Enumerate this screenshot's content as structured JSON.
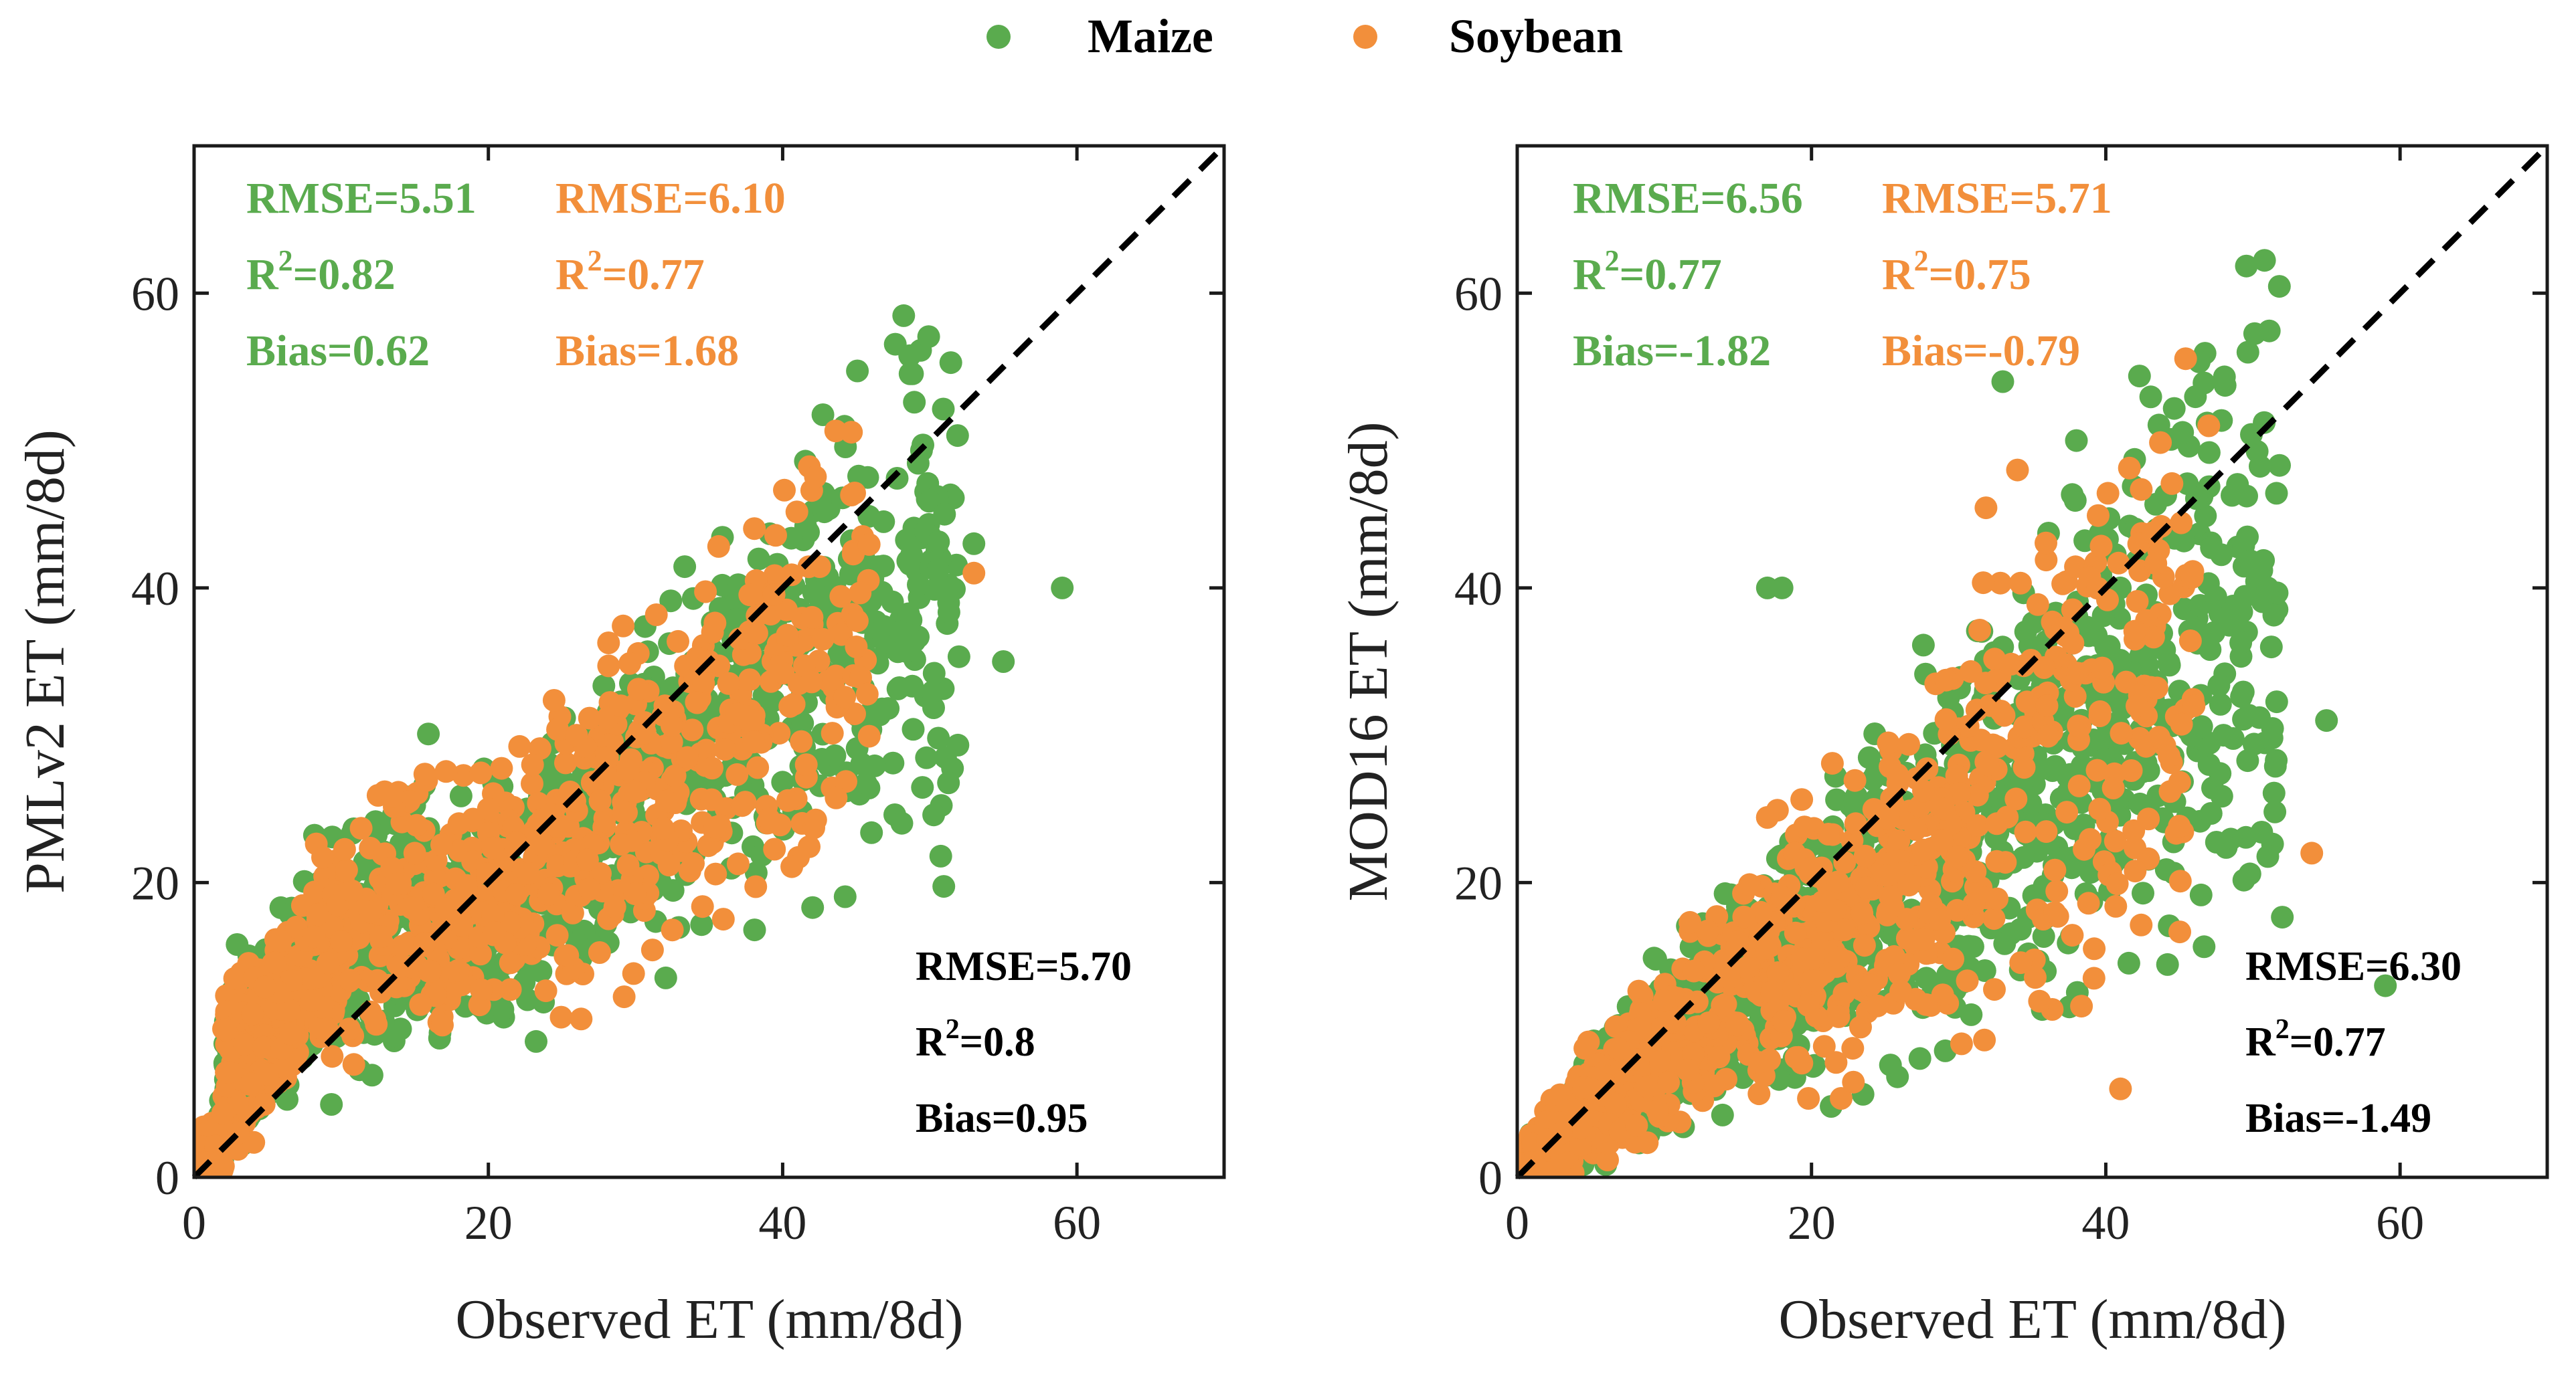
{
  "colors": {
    "maize": "#5aab4e",
    "soybean": "#f28f3b",
    "axis": "#1a1a1a",
    "combined": "#000000"
  },
  "legend": {
    "entries": [
      {
        "label": "Maize",
        "color": "#5aab4e"
      },
      {
        "label": "Soybean",
        "color": "#f28f3b"
      }
    ]
  },
  "chart_data": [
    {
      "type": "scatter",
      "title": "",
      "xlabel": "Observed ET (mm/8d)",
      "ylabel": "PMLv2 ET (mm/8d)",
      "xlim": [
        0,
        70
      ],
      "ylim": [
        0,
        70
      ],
      "xticks": [
        0,
        20,
        40,
        60
      ],
      "yticks": [
        0,
        20,
        40,
        60
      ],
      "reference_line": "1:1 dashed",
      "series": [
        {
          "name": "Maize",
          "color": "#5aab4e",
          "n_points_approx": 1400,
          "approx_points": [
            [
              1,
              1
            ],
            [
              3,
              2
            ],
            [
              5,
              6
            ],
            [
              8,
              9
            ],
            [
              10,
              14
            ],
            [
              12,
              11
            ],
            [
              15,
              18
            ],
            [
              18,
              22
            ],
            [
              20,
              20
            ],
            [
              22,
              24
            ],
            [
              25,
              27
            ],
            [
              28,
              26
            ],
            [
              30,
              30
            ],
            [
              33,
              33
            ],
            [
              35,
              34
            ],
            [
              38,
              37
            ],
            [
              40,
              39
            ],
            [
              42,
              38
            ],
            [
              45,
              38
            ],
            [
              48,
              37
            ],
            [
              51,
              45
            ],
            [
              53,
              43
            ],
            [
              55,
              35
            ],
            [
              59,
              40
            ]
          ]
        },
        {
          "name": "Soybean",
          "color": "#f28f3b",
          "n_points_approx": 900,
          "approx_points": [
            [
              1,
              1
            ],
            [
              3,
              3
            ],
            [
              5,
              7
            ],
            [
              8,
              12
            ],
            [
              10,
              16
            ],
            [
              12,
              18
            ],
            [
              15,
              22
            ],
            [
              18,
              24
            ],
            [
              20,
              25
            ],
            [
              23,
              28
            ],
            [
              26,
              30
            ],
            [
              29,
              32
            ],
            [
              32,
              32
            ],
            [
              35,
              35
            ],
            [
              38,
              37
            ],
            [
              42,
              38
            ],
            [
              45,
              36
            ],
            [
              53,
              41
            ]
          ]
        }
      ],
      "stats": {
        "maize": [
          "RMSE=5.51",
          "R",
          "2",
          "=0.82",
          "Bias=0.62"
        ],
        "soybean": [
          "RMSE=6.10",
          "R",
          "2",
          "=0.77",
          "Bias=1.68"
        ],
        "combined": [
          "RMSE=5.70",
          "R",
          "2",
          "=0.8",
          "Bias=0.95"
        ]
      }
    },
    {
      "type": "scatter",
      "title": "",
      "xlabel": "Observed ET (mm/8d)",
      "ylabel": "MOD16 ET (mm/8d)",
      "xlim": [
        0,
        70
      ],
      "ylim": [
        0,
        70
      ],
      "xticks": [
        0,
        20,
        40,
        60
      ],
      "yticks": [
        0,
        20,
        40,
        60
      ],
      "reference_line": "1:1 dashed",
      "series": [
        {
          "name": "Maize",
          "color": "#5aab4e",
          "n_points_approx": 1400,
          "approx_points": [
            [
              1,
              1
            ],
            [
              3,
              4
            ],
            [
              5,
              5
            ],
            [
              8,
              7
            ],
            [
              10,
              9
            ],
            [
              12,
              10
            ],
            [
              15,
              12
            ],
            [
              17,
              40
            ],
            [
              18,
              40
            ],
            [
              20,
              16
            ],
            [
              22,
              20
            ],
            [
              25,
              22
            ],
            [
              28,
              25
            ],
            [
              30,
              28
            ],
            [
              33,
              54
            ],
            [
              35,
              30
            ],
            [
              38,
              50
            ],
            [
              40,
              36
            ],
            [
              42,
              44
            ],
            [
              45,
              33
            ],
            [
              48,
              30
            ],
            [
              51,
              40
            ],
            [
              55,
              31
            ],
            [
              59,
              13
            ]
          ]
        },
        {
          "name": "Soybean",
          "color": "#f28f3b",
          "n_points_approx": 900,
          "approx_points": [
            [
              1,
              1
            ],
            [
              3,
              3
            ],
            [
              5,
              6
            ],
            [
              8,
              8
            ],
            [
              10,
              12
            ],
            [
              12,
              14
            ],
            [
              15,
              16
            ],
            [
              18,
              19
            ],
            [
              20,
              21
            ],
            [
              23,
              24
            ],
            [
              26,
              27
            ],
            [
              29,
              25
            ],
            [
              32,
              28
            ],
            [
              34,
              48
            ],
            [
              36,
              32
            ],
            [
              41,
              6
            ],
            [
              46,
              32
            ],
            [
              47,
              51
            ],
            [
              54,
              22
            ]
          ]
        }
      ],
      "stats": {
        "maize": [
          "RMSE=6.56",
          "R",
          "2",
          "=0.77",
          "Bias=-1.82"
        ],
        "soybean": [
          "RMSE=5.71",
          "R",
          "2",
          "=0.75",
          "Bias=-0.79"
        ],
        "combined": [
          "RMSE=6.30",
          "R",
          "2",
          "=0.77",
          "Bias=-1.49"
        ]
      }
    }
  ]
}
